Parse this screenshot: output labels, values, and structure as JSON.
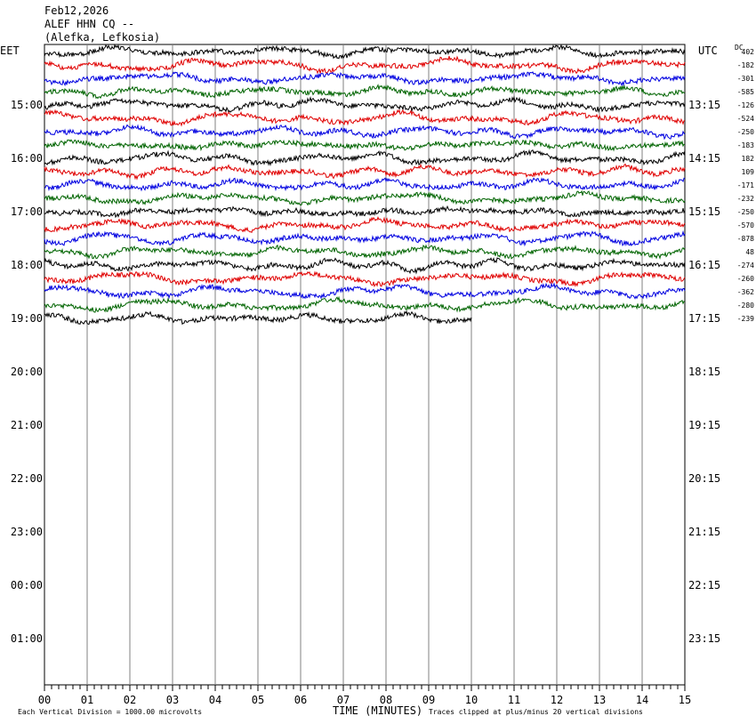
{
  "header": {
    "date": "Feb12,2026",
    "station": "ALEF HHN CQ --",
    "location": "(Alefka, Lefkosia)"
  },
  "left_tz": "EET",
  "right_tz": "UTC",
  "dc_label": "DC",
  "footer": {
    "left": "Each Vertical Division = 1000.00 microvolts",
    "center": "TIME (MINUTES)",
    "right": "Traces clipped at plus/minus 20 vertical divisions"
  },
  "chart_data": {
    "type": "line",
    "xlabel": "TIME (MINUTES)",
    "xlim": [
      0,
      15
    ],
    "x_ticks": [
      "00",
      "01",
      "02",
      "03",
      "04",
      "05",
      "06",
      "07",
      "08",
      "09",
      "10",
      "11",
      "12",
      "13",
      "14",
      "15"
    ],
    "left_hour_labels": [
      "15:00",
      "16:00",
      "17:00",
      "18:00",
      "19:00",
      "20:00",
      "21:00",
      "22:00",
      "23:00",
      "00:00",
      "01:00"
    ],
    "right_hour_labels": [
      "13:15",
      "14:15",
      "15:15",
      "16:15",
      "17:15",
      "18:15",
      "19:15",
      "20:15",
      "21:15",
      "22:15",
      "23:15"
    ],
    "trace_colors": [
      "#000000",
      "#e00000",
      "#0000e0",
      "#006400"
    ],
    "traces_per_hour": 4,
    "total_rows": 44,
    "recorded_traces": 21,
    "last_trace_minutes": 10,
    "dc_offsets": [
      "402",
      "-182",
      "-301",
      "-585",
      "-126",
      "-524",
      "-250",
      "-183",
      "182",
      "109",
      "-171",
      "-232",
      "-250",
      "-570",
      "-878",
      "48",
      "-274",
      "-260",
      "-362",
      "-280",
      "-239"
    ]
  }
}
